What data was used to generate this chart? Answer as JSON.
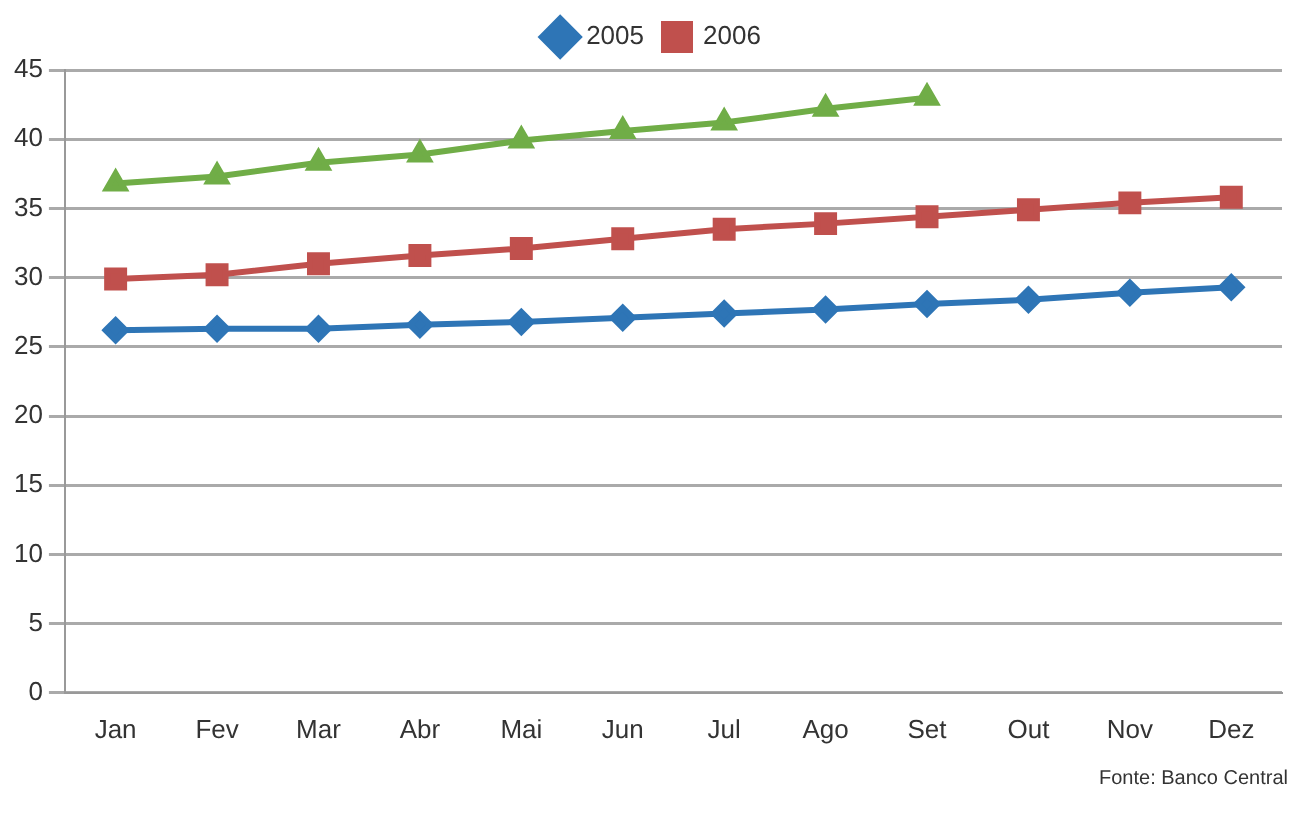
{
  "chart_data": {
    "type": "line",
    "categories": [
      "Jan",
      "Fev",
      "Mar",
      "Abr",
      "Mai",
      "Jun",
      "Jul",
      "Ago",
      "Set",
      "Out",
      "Nov",
      "Dez"
    ],
    "series": [
      {
        "name": "2005",
        "color": "#2e75b6",
        "marker": "diamond",
        "values": [
          26.2,
          26.3,
          26.3,
          26.6,
          26.8,
          27.1,
          27.4,
          27.7,
          28.1,
          28.4,
          28.9,
          29.3
        ]
      },
      {
        "name": "2006",
        "color": "#c0504d",
        "marker": "square",
        "values": [
          29.9,
          30.2,
          31.0,
          31.6,
          32.1,
          32.8,
          33.5,
          33.9,
          34.4,
          34.9,
          35.4,
          35.8
        ]
      },
      {
        "color": "#70ad47",
        "marker": "triangle",
        "values": [
          36.8,
          37.3,
          38.3,
          38.9,
          39.9,
          40.6,
          41.2,
          42.2,
          43.0,
          null,
          null,
          null
        ]
      }
    ],
    "ylim": [
      0,
      45
    ],
    "yticks": [
      0,
      5,
      10,
      15,
      20,
      25,
      30,
      35,
      40,
      45
    ],
    "grid": "y",
    "legend": "top",
    "line_style": "solid",
    "annotations": [
      "Fonte: Banco Central"
    ]
  }
}
